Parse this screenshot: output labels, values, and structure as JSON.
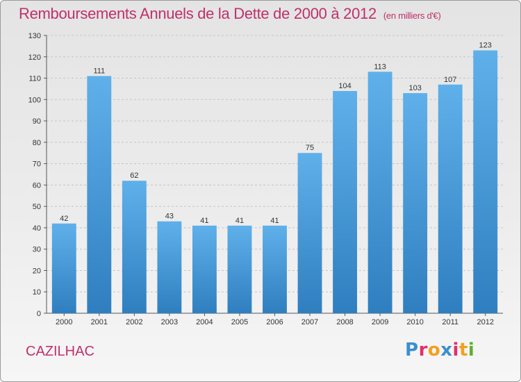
{
  "title": "Remboursements Annuels de la Dette de 2000 à 2012",
  "unit": "(en milliers d'€)",
  "commune": "CAZILHAC",
  "brand": {
    "letters": [
      "P",
      "r",
      "o",
      "x",
      "i",
      "t",
      "i"
    ],
    "colors": [
      "#3a8fd0",
      "#e0306a",
      "#f0a020",
      "#3a8fd0",
      "#e0306a",
      "#f0a020",
      "#5cb030"
    ]
  },
  "colors": {
    "bar_top": "#5fb0ea",
    "bar_bottom": "#2f7fc0",
    "title": "#c0306a"
  },
  "chart_data": {
    "type": "bar",
    "categories": [
      "2000",
      "2001",
      "2002",
      "2003",
      "2004",
      "2005",
      "2006",
      "2007",
      "2008",
      "2009",
      "2010",
      "2011",
      "2012"
    ],
    "values": [
      42,
      111,
      62,
      43,
      41,
      41,
      41,
      75,
      104,
      113,
      103,
      107,
      123
    ],
    "ylim": [
      0,
      130
    ],
    "yticks": [
      0,
      10,
      20,
      30,
      40,
      50,
      60,
      70,
      80,
      90,
      100,
      110,
      120,
      130
    ],
    "grid": true,
    "data_labels": true
  }
}
